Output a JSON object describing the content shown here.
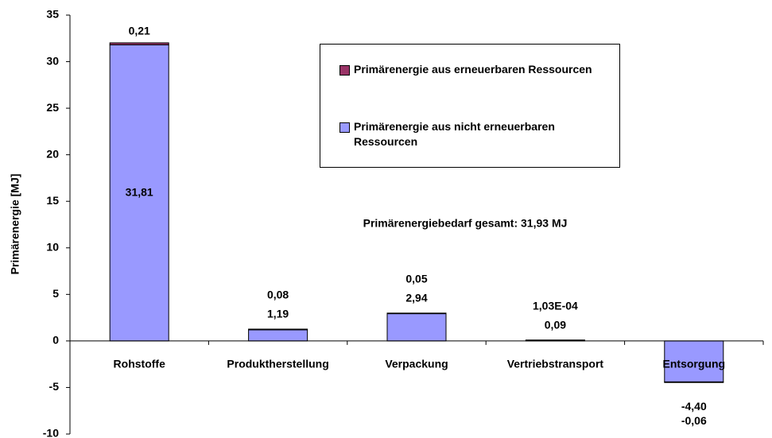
{
  "chart_data": {
    "type": "stacked_bar",
    "ylabel": "Primärenergie [MJ]",
    "annotation": "Primärenergiebedarf gesamt:  31,93 MJ",
    "categories": [
      "Rohstoffe",
      "Produktherstellung",
      "Verpackung",
      "Vertriebstransport",
      "Entsorgung"
    ],
    "series": [
      {
        "name": "Primärenergie aus nicht erneuerbaren Ressourcen",
        "color": "#9999ff",
        "values": [
          31.81,
          1.19,
          2.94,
          0.09,
          -4.4
        ],
        "value_labels": [
          "31,81",
          "1,19",
          "2,94",
          "0,09",
          "-4,40"
        ]
      },
      {
        "name": "Primärenergie aus erneuerbaren Ressourcen",
        "color": "#993366",
        "values": [
          0.21,
          0.08,
          0.05,
          0.000103,
          -0.06
        ],
        "value_labels": [
          "0,21",
          "0,08",
          "0,05",
          "1,03E-04",
          "-0,06"
        ]
      }
    ],
    "ylim": [
      -10,
      35
    ],
    "yticks": [
      -10,
      -5,
      0,
      5,
      10,
      15,
      20,
      25,
      30,
      35
    ],
    "grid": false
  }
}
